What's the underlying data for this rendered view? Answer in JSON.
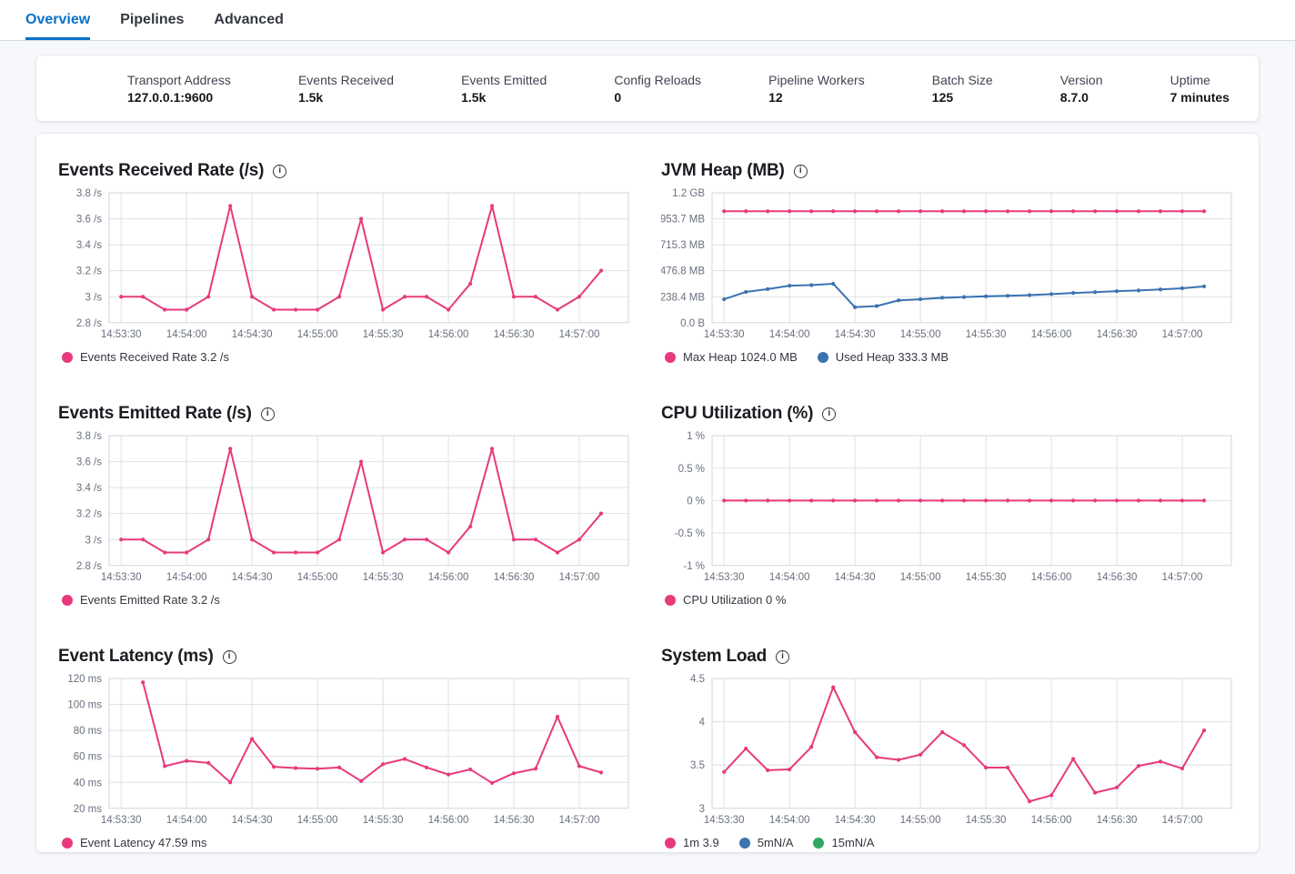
{
  "tabs": [
    {
      "label": "Overview",
      "active": true
    },
    {
      "label": "Pipelines",
      "active": false
    },
    {
      "label": "Advanced",
      "active": false
    }
  ],
  "stats": [
    {
      "label": "Transport Address",
      "value": "127.0.0.1:9600"
    },
    {
      "label": "Events Received",
      "value": "1.5k"
    },
    {
      "label": "Events Emitted",
      "value": "1.5k"
    },
    {
      "label": "Config Reloads",
      "value": "0"
    },
    {
      "label": "Pipeline Workers",
      "value": "12"
    },
    {
      "label": "Batch Size",
      "value": "125"
    },
    {
      "label": "Version",
      "value": "8.7.0"
    },
    {
      "label": "Uptime",
      "value": "7 minutes"
    }
  ],
  "colors": {
    "pink": "#e73a7c",
    "blue": "#3b73b2",
    "green": "#2fa865",
    "grid": "#dfe0e6",
    "frame": "#d3d6df",
    "tick_text": "#69707d",
    "legend_text": "#343741",
    "accent_tab": "#0871c5"
  },
  "icons": {
    "info": "info-icon"
  },
  "x_tick_labels": [
    "14:53:30",
    "14:54:00",
    "14:54:30",
    "14:55:00",
    "14:55:30",
    "14:56:00",
    "14:56:30",
    "14:57:00"
  ],
  "chart_data": [
    {
      "name": "events-received-rate",
      "type": "line",
      "title": "Events Received Rate (/s)",
      "ylim": [
        2.8,
        3.8
      ],
      "y_ticks": [
        {
          "label": "3.8 /s",
          "value": 3.8
        },
        {
          "label": "3.6 /s",
          "value": 3.6
        },
        {
          "label": "3.4 /s",
          "value": 3.4
        },
        {
          "label": "3.2 /s",
          "value": 3.2
        },
        {
          "label": "3 /s",
          "value": 3.0
        },
        {
          "label": "2.8 /s",
          "value": 2.8
        }
      ],
      "series": [
        {
          "name": "Events Received Rate",
          "color": "pink",
          "start": 0,
          "values": [
            3.0,
            3.0,
            2.9,
            2.9,
            3.0,
            3.7,
            3.0,
            2.9,
            2.9,
            2.9,
            3.0,
            3.6,
            2.9,
            3.0,
            3.0,
            2.9,
            3.1,
            3.7,
            3.0,
            3.0,
            2.9,
            3.0,
            3.2
          ]
        }
      ],
      "legend": [
        {
          "color": "pink",
          "label": "Events Received Rate 3.2 /s"
        }
      ]
    },
    {
      "name": "jvm-heap",
      "type": "line",
      "title": "JVM Heap (MB)",
      "ylim": [
        0,
        1192
      ],
      "y_ticks": [
        {
          "label": "1.2 GB",
          "value": 1192
        },
        {
          "label": "953.7 MB",
          "value": 953.7
        },
        {
          "label": "715.3 MB",
          "value": 715.3
        },
        {
          "label": "476.8 MB",
          "value": 476.8
        },
        {
          "label": "238.4 MB",
          "value": 238.4
        },
        {
          "label": "0.0 B",
          "value": 0
        }
      ],
      "series": [
        {
          "name": "Max Heap",
          "color": "pink",
          "start": 0,
          "values": [
            1024,
            1024,
            1024,
            1024,
            1024,
            1024,
            1024,
            1024,
            1024,
            1024,
            1024,
            1024,
            1024,
            1024,
            1024,
            1024,
            1024,
            1024,
            1024,
            1024,
            1024,
            1024,
            1024
          ]
        },
        {
          "name": "Used Heap",
          "color": "blue",
          "start": 0,
          "values": [
            215,
            282,
            308,
            340,
            345,
            358,
            142,
            152,
            205,
            215,
            228,
            235,
            242,
            247,
            253,
            262,
            272,
            280,
            289,
            296,
            305,
            315,
            333
          ]
        }
      ],
      "legend": [
        {
          "color": "pink",
          "label": "Max Heap 1024.0 MB"
        },
        {
          "color": "blue",
          "label": "Used Heap 333.3 MB"
        }
      ]
    },
    {
      "name": "events-emitted-rate",
      "type": "line",
      "title": "Events Emitted Rate (/s)",
      "ylim": [
        2.8,
        3.8
      ],
      "y_ticks": [
        {
          "label": "3.8 /s",
          "value": 3.8
        },
        {
          "label": "3.6 /s",
          "value": 3.6
        },
        {
          "label": "3.4 /s",
          "value": 3.4
        },
        {
          "label": "3.2 /s",
          "value": 3.2
        },
        {
          "label": "3 /s",
          "value": 3.0
        },
        {
          "label": "2.8 /s",
          "value": 2.8
        }
      ],
      "series": [
        {
          "name": "Events Emitted Rate",
          "color": "pink",
          "start": 0,
          "values": [
            3.0,
            3.0,
            2.9,
            2.9,
            3.0,
            3.7,
            3.0,
            2.9,
            2.9,
            2.9,
            3.0,
            3.6,
            2.9,
            3.0,
            3.0,
            2.9,
            3.1,
            3.7,
            3.0,
            3.0,
            2.9,
            3.0,
            3.2
          ]
        }
      ],
      "legend": [
        {
          "color": "pink",
          "label": "Events Emitted Rate 3.2 /s"
        }
      ]
    },
    {
      "name": "cpu-utilization",
      "type": "line",
      "title": "CPU Utilization (%)",
      "ylim": [
        -1,
        1
      ],
      "y_ticks": [
        {
          "label": "1 %",
          "value": 1
        },
        {
          "label": "0.5 %",
          "value": 0.5
        },
        {
          "label": "0 %",
          "value": 0
        },
        {
          "label": "-0.5 %",
          "value": -0.5
        },
        {
          "label": "-1 %",
          "value": -1
        }
      ],
      "series": [
        {
          "name": "CPU Utilization",
          "color": "pink",
          "start": 0,
          "values": [
            0,
            0,
            0,
            0,
            0,
            0,
            0,
            0,
            0,
            0,
            0,
            0,
            0,
            0,
            0,
            0,
            0,
            0,
            0,
            0,
            0,
            0,
            0
          ]
        }
      ],
      "legend": [
        {
          "color": "pink",
          "label": "CPU Utilization 0 %"
        }
      ]
    },
    {
      "name": "event-latency",
      "type": "line",
      "title": "Event Latency (ms)",
      "ylim": [
        20,
        120
      ],
      "y_ticks": [
        {
          "label": "120 ms",
          "value": 120
        },
        {
          "label": "100 ms",
          "value": 100
        },
        {
          "label": "80 ms",
          "value": 80
        },
        {
          "label": "60 ms",
          "value": 60
        },
        {
          "label": "40 ms",
          "value": 40
        },
        {
          "label": "20 ms",
          "value": 20
        }
      ],
      "series": [
        {
          "name": "Event Latency",
          "color": "pink",
          "start": 1,
          "values": [
            117,
            52.5,
            56.5,
            55,
            40,
            73.5,
            52,
            51,
            50.5,
            51.5,
            41,
            54,
            58,
            51.5,
            46,
            50,
            39.5,
            47,
            50.5,
            90.5,
            52.5,
            47.59
          ]
        }
      ],
      "legend": [
        {
          "color": "pink",
          "label": "Event Latency 47.59 ms"
        }
      ]
    },
    {
      "name": "system-load",
      "type": "line",
      "title": "System Load",
      "ylim": [
        3,
        4.5
      ],
      "y_ticks": [
        {
          "label": "4.5",
          "value": 4.5
        },
        {
          "label": "4",
          "value": 4
        },
        {
          "label": "3.5",
          "value": 3.5
        },
        {
          "label": "3",
          "value": 3
        }
      ],
      "series": [
        {
          "name": "1m",
          "color": "pink",
          "start": 0,
          "values": [
            3.42,
            3.69,
            3.44,
            3.45,
            3.71,
            4.4,
            3.88,
            3.59,
            3.56,
            3.62,
            3.88,
            3.73,
            3.47,
            3.47,
            3.08,
            3.15,
            3.57,
            3.18,
            3.24,
            3.49,
            3.54,
            3.46,
            3.9
          ]
        }
      ],
      "legend": [
        {
          "color": "pink",
          "label": "1m 3.9"
        },
        {
          "color": "blue",
          "label": "5mN/A"
        },
        {
          "color": "green",
          "label": "15mN/A"
        }
      ]
    }
  ]
}
